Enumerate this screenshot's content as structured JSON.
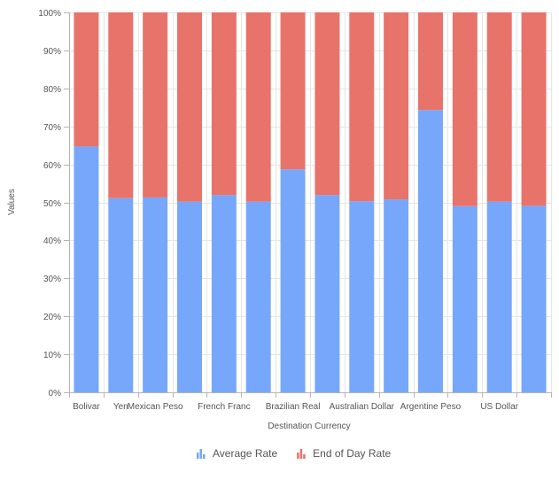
{
  "chart_data": {
    "type": "bar",
    "stacking": "percent",
    "title": "",
    "xlabel": "Destination Currency",
    "ylabel": "Values",
    "ylim": [
      0,
      100
    ],
    "y_ticks": [
      "0%",
      "10%",
      "20%",
      "30%",
      "40%",
      "50%",
      "60%",
      "70%",
      "80%",
      "90%",
      "100%"
    ],
    "categories": [
      "Bolivar",
      "Yen",
      "Mexican Peso",
      "",
      "French Franc",
      "",
      "Brazilian Real",
      "",
      "Australian Dollar",
      "",
      "Argentine Peso",
      "",
      "US Dollar",
      ""
    ],
    "series": [
      {
        "name": "Average Rate",
        "color": "#76a7fa",
        "values": [
          64.7,
          51.1,
          51.3,
          50.2,
          51.9,
          50.2,
          58.7,
          51.9,
          50.3,
          50.8,
          74.3,
          49.0,
          50.2,
          49.1
        ]
      },
      {
        "name": "End of Day Rate",
        "color": "#e8736a",
        "values": [
          35.3,
          48.9,
          48.7,
          49.8,
          48.1,
          49.8,
          41.3,
          48.1,
          49.7,
          49.2,
          25.7,
          51.0,
          49.8,
          50.9
        ]
      }
    ],
    "grid": true,
    "legend": "bottom-center",
    "legend_icon": "bar-chart-icon"
  }
}
